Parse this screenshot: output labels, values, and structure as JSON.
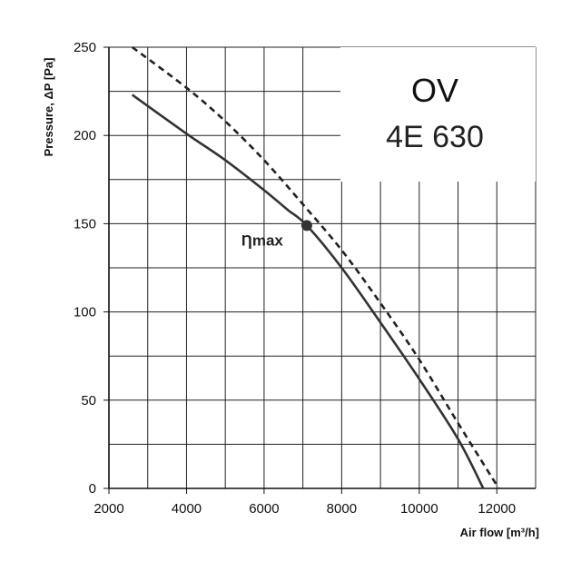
{
  "chart_data": {
    "type": "line",
    "xlabel": "Air flow [m³/h]",
    "ylabel": "Pressure, ΔP [Pa]",
    "xlim": [
      2000,
      13000
    ],
    "ylim": [
      0,
      250
    ],
    "x_ticks": [
      2000,
      4000,
      6000,
      8000,
      10000,
      12000
    ],
    "y_ticks": [
      0,
      50,
      100,
      150,
      200,
      250
    ],
    "grid": true,
    "model_name": "OV",
    "model_code": "4E 630",
    "series": [
      {
        "style": "solid",
        "color": "#333333",
        "points": [
          [
            2600,
            223
          ],
          [
            4000,
            201
          ],
          [
            5000,
            186
          ],
          [
            6000,
            169
          ],
          [
            6600,
            158
          ],
          [
            7100,
            149
          ],
          [
            8000,
            125
          ],
          [
            9000,
            94
          ],
          [
            10000,
            62
          ],
          [
            11000,
            28
          ],
          [
            11650,
            0
          ]
        ]
      },
      {
        "style": "dashed",
        "color": "#222222",
        "points": [
          [
            2600,
            250
          ],
          [
            4000,
            227
          ],
          [
            5000,
            208
          ],
          [
            6000,
            186
          ],
          [
            7000,
            161
          ],
          [
            8000,
            135
          ],
          [
            9000,
            105
          ],
          [
            10000,
            73
          ],
          [
            11000,
            37
          ],
          [
            12050,
            0
          ]
        ]
      }
    ],
    "annotations": [
      {
        "text": "Ƞmax",
        "x": 7100,
        "y": 149,
        "marker": "filled-circle"
      }
    ]
  }
}
